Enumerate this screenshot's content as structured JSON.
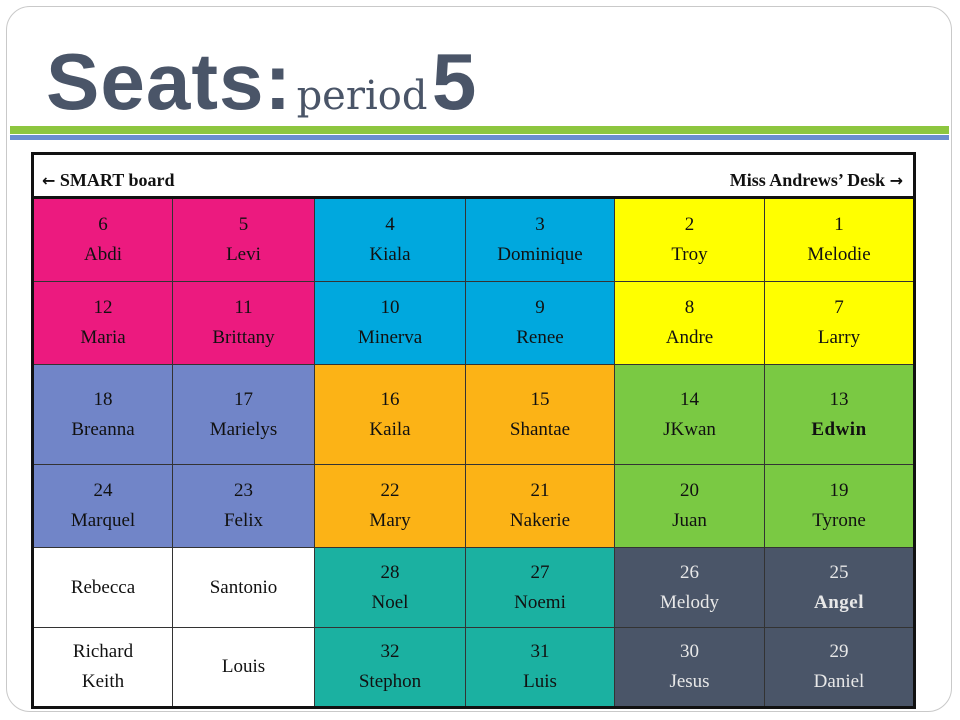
{
  "title": {
    "main": "Seats:",
    "sub": "period",
    "number": "5"
  },
  "header": {
    "left_text": "SMART board",
    "right_text": "Miss Andrews’ Desk",
    "left_arrow": "←",
    "right_arrow": "→"
  },
  "colors": {
    "magenta": "#ec1a7f",
    "cyan": "#00a8de",
    "yellow": "#ffff00",
    "periwinkle": "#7185c8",
    "orange": "#fcb316",
    "green": "#7ac943",
    "teal": "#1bb1a1",
    "slate": "#4a5568",
    "white": "#ffffff"
  },
  "rows": [
    [
      {
        "num": "6",
        "name": "Abdi",
        "color": "magenta"
      },
      {
        "num": "5",
        "name": "Levi",
        "color": "magenta"
      },
      {
        "num": "4",
        "name": "Kiala",
        "color": "cyan"
      },
      {
        "num": "3",
        "name": "Dominique",
        "color": "cyan"
      },
      {
        "num": "2",
        "name": "Troy",
        "color": "yellow"
      },
      {
        "num": "1",
        "name": "Melodie",
        "color": "yellow"
      }
    ],
    [
      {
        "num": "12",
        "name": "Maria",
        "color": "magenta"
      },
      {
        "num": "11",
        "name": "Brittany",
        "color": "magenta"
      },
      {
        "num": "10",
        "name": "Minerva",
        "color": "cyan"
      },
      {
        "num": "9",
        "name": "Renee",
        "color": "cyan"
      },
      {
        "num": "8",
        "name": "Andre",
        "color": "yellow"
      },
      {
        "num": "7",
        "name": "Larry",
        "color": "yellow"
      }
    ],
    [
      {
        "num": "18",
        "name": "Breanna",
        "color": "periwinkle"
      },
      {
        "num": "17",
        "name": "Marielys",
        "color": "periwinkle"
      },
      {
        "num": "16",
        "name": "Kaila",
        "color": "orange"
      },
      {
        "num": "15",
        "name": "Shantae",
        "color": "orange"
      },
      {
        "num": "14",
        "name": "JKwan",
        "color": "green"
      },
      {
        "num": "13",
        "name": "Edwin",
        "color": "green",
        "bold": true
      }
    ],
    [
      {
        "num": "24",
        "name": "Marquel",
        "color": "periwinkle"
      },
      {
        "num": "23",
        "name": "Felix",
        "color": "periwinkle"
      },
      {
        "num": "22",
        "name": "Mary",
        "color": "orange"
      },
      {
        "num": "21",
        "name": "Nakerie",
        "color": "orange"
      },
      {
        "num": "20",
        "name": "Juan",
        "color": "green"
      },
      {
        "num": "19",
        "name": "Tyrone",
        "color": "green"
      }
    ],
    [
      {
        "num": "",
        "name": "Rebecca",
        "color": "white"
      },
      {
        "num": "",
        "name": "Santonio",
        "color": "white"
      },
      {
        "num": "28",
        "name": "Noel",
        "color": "teal"
      },
      {
        "num": "27",
        "name": "Noemi",
        "color": "teal"
      },
      {
        "num": "26",
        "name": "Melody",
        "color": "slate"
      },
      {
        "num": "25",
        "name": "Angel",
        "color": "slate",
        "bold": true
      }
    ],
    [
      {
        "num": "",
        "name": "Richard",
        "name2": "Keith",
        "color": "white"
      },
      {
        "num": "",
        "name": "Louis",
        "color": "white"
      },
      {
        "num": "32",
        "name": "Stephon",
        "color": "teal"
      },
      {
        "num": "31",
        "name": "Luis",
        "color": "teal"
      },
      {
        "num": "30",
        "name": "Jesus",
        "color": "slate"
      },
      {
        "num": "29",
        "name": "Daniel",
        "color": "slate"
      }
    ]
  ]
}
